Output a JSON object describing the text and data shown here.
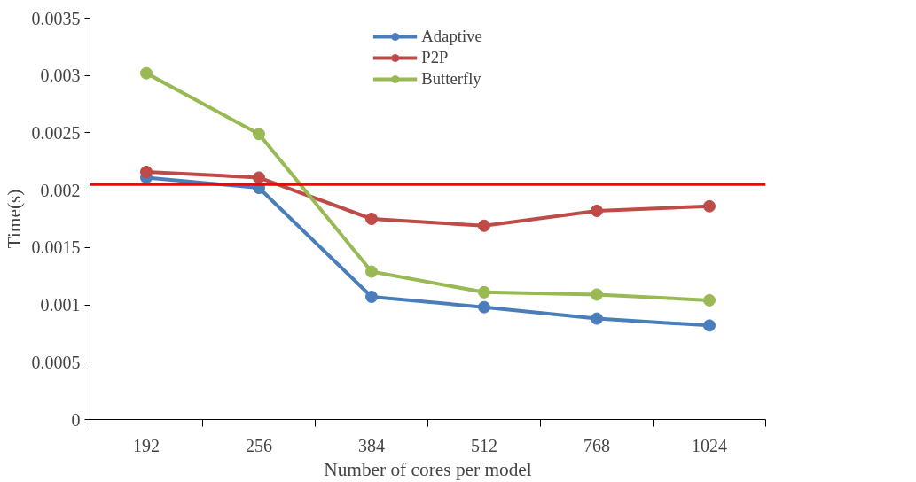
{
  "chart_data": {
    "type": "line",
    "xlabel": "Number of cores per model",
    "ylabel": "Time(s)",
    "categories": [
      "192",
      "256",
      "384",
      "512",
      "768",
      "1024"
    ],
    "series": [
      {
        "name": "Adaptive",
        "color": "#4a7ebb",
        "values": [
          0.00211,
          0.00202,
          0.00107,
          0.00098,
          0.00088,
          0.00082
        ]
      },
      {
        "name": "P2P",
        "color": "#be4b48",
        "values": [
          0.00216,
          0.00211,
          0.00175,
          0.00169,
          0.00182,
          0.00186
        ]
      },
      {
        "name": "Butterfly",
        "color": "#98b954",
        "values": [
          0.00302,
          0.00249,
          0.00129,
          0.00111,
          0.00109,
          0.00104
        ]
      }
    ],
    "ylim": [
      0,
      0.0035
    ],
    "yticks": [
      0,
      0.0005,
      0.001,
      0.0015,
      0.002,
      0.0025,
      0.003,
      0.0035
    ],
    "ref_lines": [
      {
        "axis": "y",
        "value": 0.00205,
        "color": "#ff0000"
      }
    ],
    "grid": false,
    "legend": "top",
    "marker": "circle",
    "line_style": "solid"
  }
}
